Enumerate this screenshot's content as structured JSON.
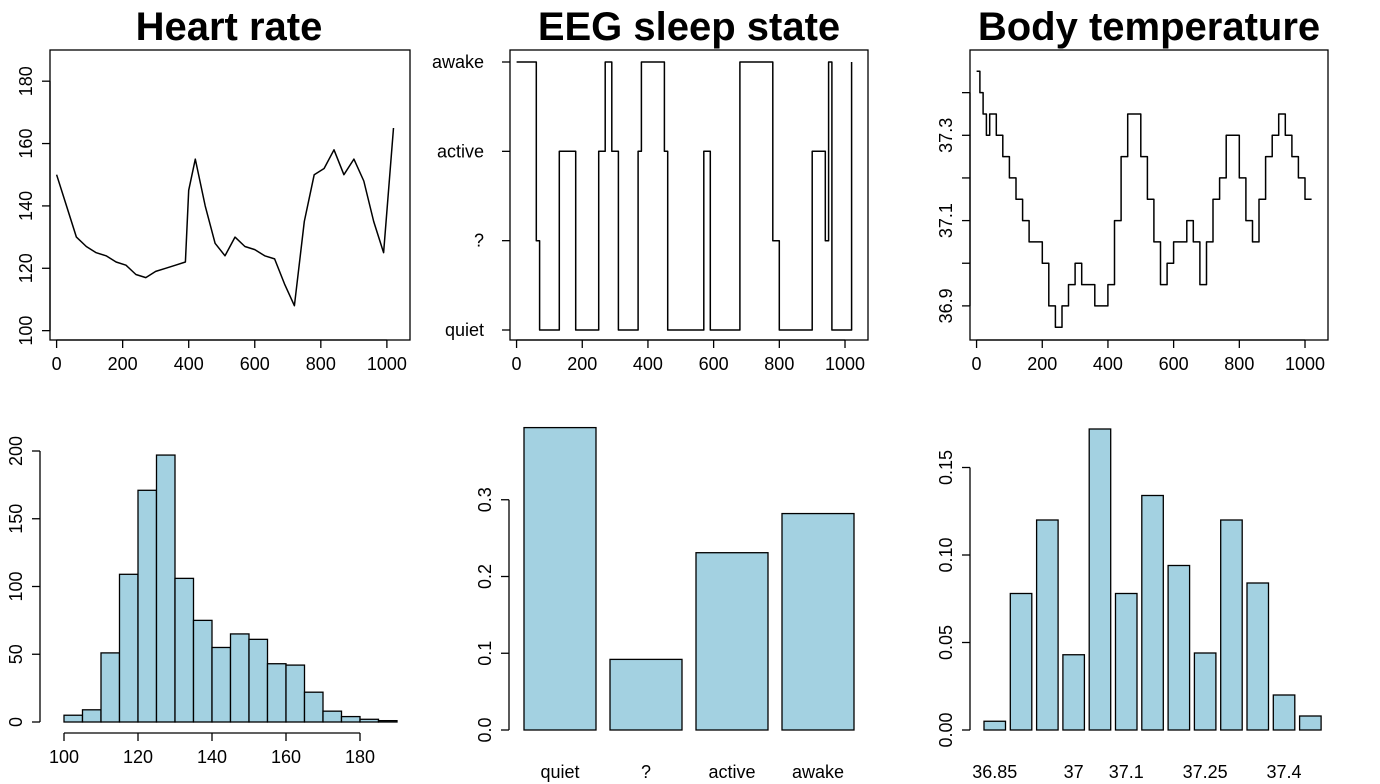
{
  "chart_data": [
    {
      "type": "line",
      "title": "Heart rate",
      "xlabel": "",
      "ylabel": "",
      "xlim": [
        0,
        1050
      ],
      "ylim": [
        97,
        190
      ],
      "x_ticks": [
        0,
        200,
        400,
        600,
        800,
        1000
      ],
      "y_ticks": [
        100,
        120,
        140,
        160,
        180
      ],
      "series": [
        {
          "x": [
            0,
            30,
            60,
            90,
            120,
            150,
            180,
            210,
            240,
            270,
            300,
            330,
            360,
            390,
            400,
            420,
            450,
            480,
            510,
            540,
            570,
            600,
            630,
            660,
            690,
            720,
            750,
            780,
            810,
            840,
            870,
            900,
            930,
            960,
            990,
            1020
          ],
          "y": [
            150,
            140,
            130,
            127,
            125,
            124,
            122,
            121,
            118,
            117,
            119,
            120,
            121,
            122,
            145,
            155,
            140,
            128,
            124,
            130,
            127,
            126,
            124,
            123,
            115,
            108,
            135,
            150,
            152,
            158,
            150,
            155,
            148,
            135,
            125,
            165
          ]
        }
      ]
    },
    {
      "type": "line",
      "title": "EEG sleep state",
      "xlabel": "",
      "ylabel": "",
      "xlim": [
        0,
        1050
      ],
      "y_categories": [
        "quiet",
        "?",
        "active",
        "awake"
      ],
      "x_ticks": [
        0,
        200,
        400,
        600,
        800,
        1000
      ],
      "series": [
        {
          "step": true,
          "x": [
            0,
            60,
            70,
            80,
            130,
            180,
            230,
            250,
            270,
            290,
            310,
            330,
            370,
            380,
            390,
            450,
            460,
            480,
            520,
            570,
            590,
            610,
            630,
            680,
            760,
            780,
            800,
            860,
            900,
            920,
            940,
            950,
            960,
            1010,
            1020
          ],
          "y": [
            "awake",
            "?",
            "quiet",
            "quiet",
            "active",
            "quiet",
            "quiet",
            "active",
            "awake",
            "active",
            "quiet",
            "quiet",
            "active",
            "awake",
            "awake",
            "active",
            "quiet",
            "quiet",
            "quiet",
            "active",
            "quiet",
            "quiet",
            "quiet",
            "awake",
            "awake",
            "?",
            "quiet",
            "quiet",
            "active",
            "active",
            "?",
            "awake",
            "quiet",
            "quiet",
            "awake"
          ]
        }
      ]
    },
    {
      "type": "line",
      "title": "Body temperature",
      "xlabel": "",
      "ylabel": "",
      "xlim": [
        0,
        1050
      ],
      "ylim": [
        36.82,
        37.5
      ],
      "x_ticks": [
        0,
        200,
        400,
        600,
        800,
        1000
      ],
      "y_ticks": [
        36.9,
        37.0,
        37.1,
        37.2,
        37.3,
        37.4
      ],
      "y_tick_labels": [
        "36.9",
        "",
        "37.1",
        "",
        "37.3",
        ""
      ],
      "series": [
        {
          "step": true,
          "x": [
            0,
            10,
            20,
            30,
            40,
            60,
            80,
            100,
            120,
            140,
            160,
            180,
            200,
            220,
            240,
            260,
            280,
            300,
            320,
            340,
            360,
            380,
            400,
            420,
            440,
            460,
            480,
            500,
            520,
            540,
            560,
            580,
            600,
            620,
            640,
            660,
            680,
            700,
            720,
            740,
            760,
            780,
            800,
            820,
            840,
            860,
            880,
            900,
            920,
            940,
            960,
            980,
            1000,
            1020
          ],
          "y": [
            37.45,
            37.4,
            37.35,
            37.3,
            37.35,
            37.3,
            37.25,
            37.2,
            37.15,
            37.1,
            37.05,
            37.05,
            37.0,
            36.9,
            36.85,
            36.9,
            36.95,
            37.0,
            36.95,
            36.95,
            36.9,
            36.9,
            36.95,
            37.1,
            37.25,
            37.35,
            37.35,
            37.25,
            37.15,
            37.05,
            36.95,
            37.0,
            37.05,
            37.05,
            37.1,
            37.05,
            36.95,
            37.05,
            37.15,
            37.2,
            37.3,
            37.3,
            37.2,
            37.1,
            37.05,
            37.15,
            37.25,
            37.3,
            37.35,
            37.3,
            37.25,
            37.2,
            37.15,
            37.15
          ]
        }
      ]
    },
    {
      "type": "bar",
      "subtype": "histogram",
      "title": "",
      "xlim": [
        100,
        190
      ],
      "ylim": [
        0,
        200
      ],
      "bin_width": 5,
      "bins_start": [
        100,
        105,
        110,
        115,
        120,
        125,
        130,
        135,
        140,
        145,
        150,
        155,
        160,
        165,
        170,
        175,
        180,
        185
      ],
      "values": [
        5,
        9,
        51,
        109,
        171,
        197,
        106,
        75,
        55,
        65,
        61,
        43,
        42,
        22,
        8,
        4,
        2,
        1
      ],
      "x_ticks": [
        100,
        120,
        140,
        160,
        180
      ],
      "y_ticks": [
        0,
        50,
        100,
        150,
        200
      ],
      "color": "#a3d1e1"
    },
    {
      "type": "bar",
      "title": "",
      "categories": [
        "quiet",
        "?",
        "active",
        "awake"
      ],
      "values": [
        0.394,
        0.092,
        0.231,
        0.282
      ],
      "ylim": [
        0,
        0.4
      ],
      "y_ticks": [
        0.0,
        0.1,
        0.2,
        0.3
      ],
      "y_tick_labels": [
        "0.0",
        "0.1",
        "0.2",
        "0.3"
      ],
      "color": "#a3d1e1"
    },
    {
      "type": "bar",
      "title": "",
      "categories": [
        "36.85",
        "36.9",
        "36.95",
        "37",
        "37.05",
        "37.1",
        "37.15",
        "37.2",
        "37.25",
        "37.3",
        "37.35",
        "37.4",
        "37.45"
      ],
      "shown_category_labels": [
        "36.85",
        "",
        "",
        "37",
        "",
        "37.1",
        "",
        "",
        "37.25",
        "",
        "",
        "37.4",
        ""
      ],
      "values": [
        0.005,
        0.078,
        0.12,
        0.043,
        0.172,
        0.078,
        0.134,
        0.094,
        0.044,
        0.12,
        0.084,
        0.02,
        0.008
      ],
      "ylim": [
        0,
        0.18
      ],
      "y_ticks": [
        0.0,
        0.05,
        0.1,
        0.15
      ],
      "y_tick_labels": [
        "0.00",
        "0.05",
        "0.10",
        "0.15"
      ],
      "color": "#a3d1e1"
    }
  ]
}
